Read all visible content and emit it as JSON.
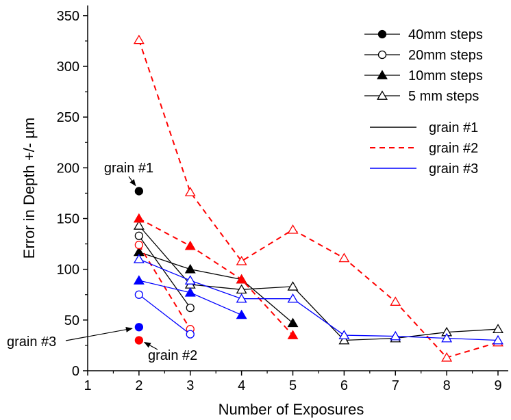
{
  "chart_data": {
    "type": "line",
    "xlabel": "Number of Exposures",
    "ylabel": "Error in Depth +/- µm",
    "xlim": [
      1,
      9.2
    ],
    "ylim": [
      0,
      360
    ],
    "xticks": [
      1,
      2,
      3,
      4,
      5,
      6,
      7,
      8,
      9
    ],
    "yticks": [
      0,
      50,
      100,
      150,
      200,
      250,
      300,
      350
    ],
    "grid": false,
    "legend_position": "top-right",
    "colors": {
      "grain1": "#000000",
      "grain2": "#ff0000",
      "grain3": "#0000ff"
    },
    "legend": {
      "markers": [
        {
          "marker": "filled-circle",
          "label": "40mm steps"
        },
        {
          "marker": "open-circle",
          "label": "20mm steps"
        },
        {
          "marker": "filled-triangle",
          "label": "10mm steps"
        },
        {
          "marker": "open-triangle",
          "label": "5 mm steps"
        }
      ],
      "lines": [
        {
          "style": "solid",
          "color": "#000000",
          "label": "grain #1"
        },
        {
          "style": "dashed",
          "color": "#ff0000",
          "label": "grain #2"
        },
        {
          "style": "solid",
          "color": "#0000ff",
          "label": "grain #3"
        }
      ]
    },
    "series": [
      {
        "grain": "grain #1",
        "step": "40mm steps",
        "marker": "filled-circle",
        "line": "solid",
        "color": "#000000",
        "x": [
          2
        ],
        "y": [
          177
        ]
      },
      {
        "grain": "grain #1",
        "step": "20mm steps",
        "marker": "open-circle",
        "line": "solid",
        "color": "#000000",
        "x": [
          2,
          3
        ],
        "y": [
          133,
          62
        ]
      },
      {
        "grain": "grain #1",
        "step": "10mm steps",
        "marker": "filled-triangle",
        "line": "solid",
        "color": "#000000",
        "x": [
          2,
          3,
          4,
          5
        ],
        "y": [
          117,
          100,
          90,
          47
        ]
      },
      {
        "grain": "grain #1",
        "step": "5 mm steps",
        "marker": "open-triangle",
        "line": "solid",
        "color": "#000000",
        "x": [
          2,
          3,
          4,
          5,
          6,
          7,
          8,
          9
        ],
        "y": [
          143,
          85,
          80,
          83,
          30,
          32,
          38,
          41
        ]
      },
      {
        "grain": "grain #2",
        "step": "40mm steps",
        "marker": "filled-circle",
        "line": "dashed",
        "color": "#ff0000",
        "x": [
          2
        ],
        "y": [
          30
        ]
      },
      {
        "grain": "grain #2",
        "step": "20mm steps",
        "marker": "open-circle",
        "line": "dashed",
        "color": "#ff0000",
        "x": [
          2,
          3
        ],
        "y": [
          124,
          41
        ]
      },
      {
        "grain": "grain #2",
        "step": "10mm steps",
        "marker": "filled-triangle",
        "line": "dashed",
        "color": "#ff0000",
        "x": [
          2,
          3,
          4,
          5
        ],
        "y": [
          150,
          123,
          90,
          35
        ]
      },
      {
        "grain": "grain #2",
        "step": "5 mm steps",
        "marker": "open-triangle",
        "line": "dashed",
        "color": "#ff0000",
        "x": [
          2,
          3,
          4,
          5,
          6,
          7,
          8,
          9
        ],
        "y": [
          326,
          176,
          108,
          139,
          111,
          68,
          13,
          28
        ]
      },
      {
        "grain": "grain #3",
        "step": "40mm steps",
        "marker": "filled-circle",
        "line": "solid",
        "color": "#0000ff",
        "x": [
          2
        ],
        "y": [
          43
        ]
      },
      {
        "grain": "grain #3",
        "step": "20mm steps",
        "marker": "open-circle",
        "line": "solid",
        "color": "#0000ff",
        "x": [
          2,
          3
        ],
        "y": [
          75,
          36
        ]
      },
      {
        "grain": "grain #3",
        "step": "10mm steps",
        "marker": "filled-triangle",
        "line": "solid",
        "color": "#0000ff",
        "x": [
          2,
          3,
          4
        ],
        "y": [
          89,
          77,
          55
        ]
      },
      {
        "grain": "grain #3",
        "step": "5 mm steps",
        "marker": "open-triangle",
        "line": "solid",
        "color": "#0000ff",
        "x": [
          2,
          3,
          4,
          5,
          6,
          7,
          8,
          9
        ],
        "y": [
          110,
          89,
          71,
          71,
          35,
          34,
          32,
          30
        ]
      }
    ],
    "annotations": [
      {
        "text": "grain #1",
        "points_to": {
          "x": 2,
          "y": 177
        }
      },
      {
        "text": "grain #3",
        "points_to": {
          "x": 2,
          "y": 43
        }
      },
      {
        "text": "grain #2",
        "points_to": {
          "x": 2,
          "y": 30
        }
      }
    ]
  }
}
